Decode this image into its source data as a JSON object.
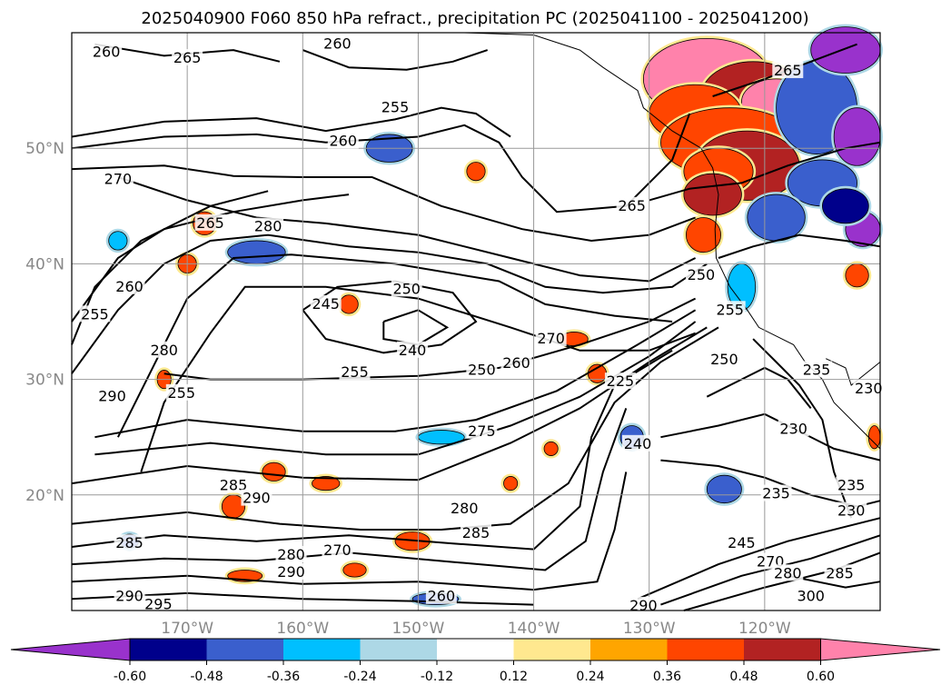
{
  "chart_data": {
    "type": "contour",
    "title": "2025040900 F060 850 hPa refract., precipitation PC (2025041100 - 2025041200)",
    "lon_ticks": [
      "170°W",
      "160°W",
      "150°W",
      "140°W",
      "130°W",
      "120°W"
    ],
    "lon_values": [
      -170,
      -160,
      -150,
      -140,
      -130,
      -120
    ],
    "lat_ticks": [
      "20°N",
      "30°N",
      "40°N",
      "50°N"
    ],
    "lat_values": [
      20,
      30,
      40,
      50
    ],
    "xlim": [
      -180,
      -110
    ],
    "ylim": [
      10,
      60
    ],
    "grid": true,
    "contour_labels": [
      {
        "text": "260",
        "lon": -177,
        "lat": 58.3
      },
      {
        "text": "265",
        "lon": -170,
        "lat": 57.8
      },
      {
        "text": "260",
        "lon": -157,
        "lat": 59
      },
      {
        "text": "255",
        "lon": -152,
        "lat": 53.5
      },
      {
        "text": "260",
        "lon": -156.5,
        "lat": 50.6
      },
      {
        "text": "270",
        "lon": -176,
        "lat": 47.3
      },
      {
        "text": "265",
        "lon": -131.5,
        "lat": 45
      },
      {
        "text": "265",
        "lon": -118,
        "lat": 56.7
      },
      {
        "text": "265",
        "lon": -168,
        "lat": 43.5
      },
      {
        "text": "280",
        "lon": -163,
        "lat": 43.2
      },
      {
        "text": "260",
        "lon": -175,
        "lat": 38
      },
      {
        "text": "255",
        "lon": -178,
        "lat": 35.6
      },
      {
        "text": "245",
        "lon": -158,
        "lat": 36.5
      },
      {
        "text": "250",
        "lon": -151,
        "lat": 37.8
      },
      {
        "text": "240",
        "lon": -150.5,
        "lat": 32.5
      },
      {
        "text": "280",
        "lon": -172,
        "lat": 32.5
      },
      {
        "text": "290",
        "lon": -176.5,
        "lat": 28.5
      },
      {
        "text": "255",
        "lon": -155.5,
        "lat": 30.6
      },
      {
        "text": "255",
        "lon": -170.5,
        "lat": 28.8
      },
      {
        "text": "250",
        "lon": -144.5,
        "lat": 30.8
      },
      {
        "text": "260",
        "lon": -141.5,
        "lat": 31.4
      },
      {
        "text": "270",
        "lon": -138.5,
        "lat": 33.5
      },
      {
        "text": "275",
        "lon": -144.5,
        "lat": 25.5
      },
      {
        "text": "250",
        "lon": -125.5,
        "lat": 39
      },
      {
        "text": "255",
        "lon": -123,
        "lat": 36
      },
      {
        "text": "250",
        "lon": -123.5,
        "lat": 31.7
      },
      {
        "text": "225",
        "lon": -132.5,
        "lat": 29.8
      },
      {
        "text": "240",
        "lon": -131,
        "lat": 24.4
      },
      {
        "text": "235",
        "lon": -115.5,
        "lat": 30.8
      },
      {
        "text": "230",
        "lon": -117.5,
        "lat": 25.7
      },
      {
        "text": "235",
        "lon": -119,
        "lat": 20.1
      },
      {
        "text": "235",
        "lon": -112.5,
        "lat": 20.8
      },
      {
        "text": "230",
        "lon": -112.5,
        "lat": 18.6
      },
      {
        "text": "230",
        "lon": -111,
        "lat": 29.2
      },
      {
        "text": "285",
        "lon": -166,
        "lat": 20.8
      },
      {
        "text": "290",
        "lon": -164,
        "lat": 19.7
      },
      {
        "text": "280",
        "lon": -146,
        "lat": 18.8
      },
      {
        "text": "285",
        "lon": -145,
        "lat": 16.7
      },
      {
        "text": "280",
        "lon": -161,
        "lat": 14.8
      },
      {
        "text": "270",
        "lon": -157,
        "lat": 15.2
      },
      {
        "text": "290",
        "lon": -161,
        "lat": 13.3
      },
      {
        "text": "285",
        "lon": -175,
        "lat": 15.8
      },
      {
        "text": "260",
        "lon": -148,
        "lat": 11.2
      },
      {
        "text": "245",
        "lon": -122,
        "lat": 15.8
      },
      {
        "text": "270",
        "lon": -119.5,
        "lat": 14.2
      },
      {
        "text": "280",
        "lon": -118,
        "lat": 13.2
      },
      {
        "text": "285",
        "lon": -113.5,
        "lat": 13.2
      },
      {
        "text": "290",
        "lon": -130.5,
        "lat": 10.4
      },
      {
        "text": "300",
        "lon": -116,
        "lat": 11.2
      },
      {
        "text": "295",
        "lon": -172.5,
        "lat": 10.5
      },
      {
        "text": "290",
        "lon": -175,
        "lat": 11.2
      }
    ],
    "precip_pc_colorbar": {
      "levels": [
        "-0.60",
        "-0.48",
        "-0.36",
        "-0.24",
        "-0.12",
        "0.12",
        "0.24",
        "0.36",
        "0.48",
        "0.60"
      ],
      "colors": [
        "#9932CC",
        "#00008B",
        "#3A5FCD",
        "#00BFFF",
        "#ADD8E6",
        "#FFFFFF",
        "#FFE88F",
        "#FFA500",
        "#FF4500",
        "#B22222",
        "#FF82AB"
      ],
      "extend": "both"
    }
  }
}
